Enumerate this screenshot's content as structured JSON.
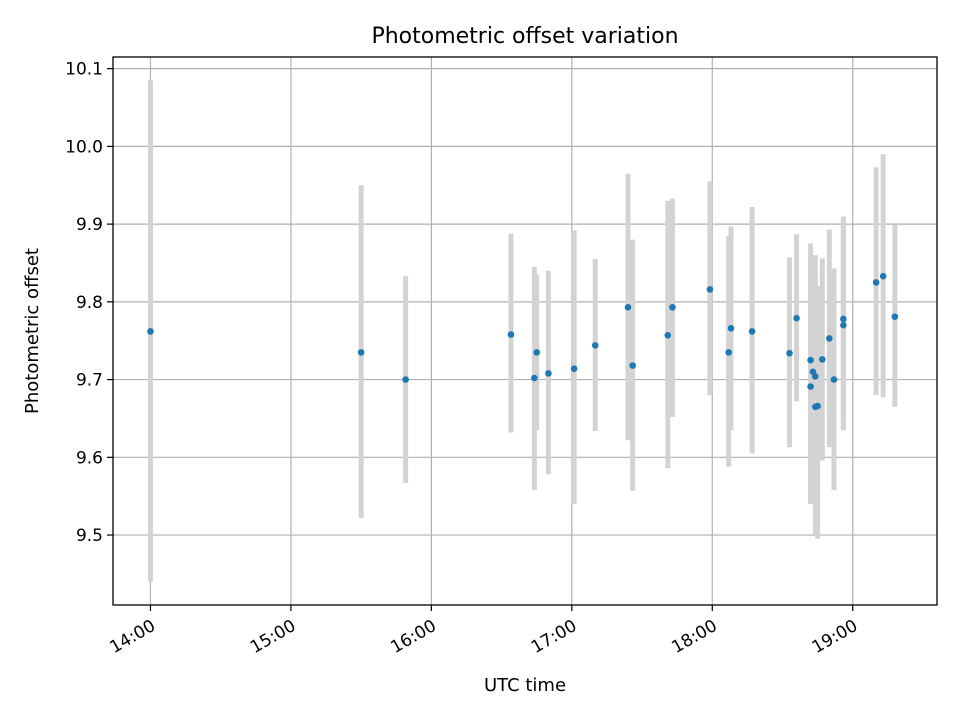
{
  "chart_data": {
    "type": "scatter",
    "title": "Photometric offset variation",
    "xlabel": "UTC time",
    "ylabel": "Photometric offset",
    "x_domain": [
      "13:44",
      "19:36"
    ],
    "ylim": [
      9.41,
      10.115
    ],
    "x_ticks": [
      "14:00",
      "15:00",
      "16:00",
      "17:00",
      "18:00",
      "19:00"
    ],
    "y_ticks": [
      "9.5",
      "9.6",
      "9.7",
      "9.8",
      "9.9",
      "10.0",
      "10.1"
    ],
    "grid": true,
    "colors": {
      "point": "#1f77b4",
      "errorbar": "#d3d3d3",
      "grid": "#b0b0b0"
    },
    "series": [
      {
        "points": [
          {
            "t": "14:00",
            "y": 9.762,
            "lo": 9.44,
            "hi": 10.085
          },
          {
            "t": "15:30",
            "y": 9.735,
            "lo": 9.522,
            "hi": 9.95
          },
          {
            "t": "15:49",
            "y": 9.7,
            "lo": 9.567,
            "hi": 9.833
          },
          {
            "t": "16:34",
            "y": 9.758,
            "lo": 9.632,
            "hi": 9.888
          },
          {
            "t": "16:44",
            "y": 9.702,
            "lo": 9.558,
            "hi": 9.845
          },
          {
            "t": "16:45",
            "y": 9.735,
            "lo": 9.635,
            "hi": 9.835
          },
          {
            "t": "16:50",
            "y": 9.708,
            "lo": 9.578,
            "hi": 9.84
          },
          {
            "t": "17:01",
            "y": 9.714,
            "lo": 9.54,
            "hi": 9.892
          },
          {
            "t": "17:10",
            "y": 9.744,
            "lo": 9.634,
            "hi": 9.855
          },
          {
            "t": "17:24",
            "y": 9.793,
            "lo": 9.622,
            "hi": 9.965
          },
          {
            "t": "17:26",
            "y": 9.718,
            "lo": 9.557,
            "hi": 9.88
          },
          {
            "t": "17:41",
            "y": 9.757,
            "lo": 9.586,
            "hi": 9.93
          },
          {
            "t": "17:43",
            "y": 9.793,
            "lo": 9.652,
            "hi": 9.933
          },
          {
            "t": "17:59",
            "y": 9.816,
            "lo": 9.68,
            "hi": 9.955
          },
          {
            "t": "18:07",
            "y": 9.735,
            "lo": 9.588,
            "hi": 9.885
          },
          {
            "t": "18:08",
            "y": 9.766,
            "lo": 9.635,
            "hi": 9.897
          },
          {
            "t": "18:17",
            "y": 9.762,
            "lo": 9.605,
            "hi": 9.922
          },
          {
            "t": "18:33",
            "y": 9.734,
            "lo": 9.613,
            "hi": 9.857
          },
          {
            "t": "18:36",
            "y": 9.779,
            "lo": 9.672,
            "hi": 9.887
          },
          {
            "t": "18:42",
            "y": 9.725,
            "lo": 9.595,
            "hi": 9.875
          },
          {
            "t": "18:42",
            "y": 9.691,
            "lo": 9.54,
            "hi": 9.84
          },
          {
            "t": "18:43",
            "y": 9.71,
            "lo": 9.568,
            "hi": 9.85
          },
          {
            "t": "18:44",
            "y": 9.704,
            "lo": 9.55,
            "hi": 9.86
          },
          {
            "t": "18:44",
            "y": 9.665,
            "lo": 9.5,
            "hi": 9.835
          },
          {
            "t": "18:45",
            "y": 9.666,
            "lo": 9.495,
            "hi": 9.82
          },
          {
            "t": "18:47",
            "y": 9.726,
            "lo": 9.596,
            "hi": 9.856
          },
          {
            "t": "18:50",
            "y": 9.753,
            "lo": 9.613,
            "hi": 9.893
          },
          {
            "t": "18:52",
            "y": 9.7,
            "lo": 9.558,
            "hi": 9.843
          },
          {
            "t": "18:56",
            "y": 9.778,
            "lo": 9.648,
            "hi": 9.91
          },
          {
            "t": "18:56",
            "y": 9.77,
            "lo": 9.635,
            "hi": 9.905
          },
          {
            "t": "19:10",
            "y": 9.825,
            "lo": 9.68,
            "hi": 9.973
          },
          {
            "t": "19:13",
            "y": 9.833,
            "lo": 9.677,
            "hi": 9.99
          },
          {
            "t": "19:18",
            "y": 9.781,
            "lo": 9.665,
            "hi": 9.899
          }
        ]
      }
    ]
  }
}
